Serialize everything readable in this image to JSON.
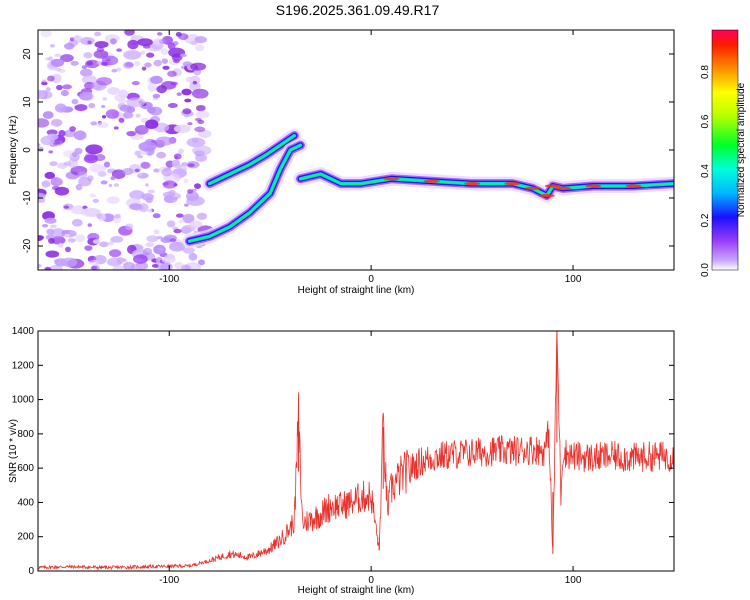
{
  "title": "S196.2025.361.09.49.R17",
  "colors": {
    "snr_line": "#e8322c",
    "axis": "#000000",
    "background": "#ffffff"
  },
  "chart_data": [
    {
      "type": "heatmap",
      "xlabel": "Height of straight line (km)",
      "ylabel": "Frequency (Hz)",
      "xlim": [
        -165,
        150
      ],
      "ylim": [
        -25,
        25
      ],
      "x_ticks": [
        -100,
        0,
        100
      ],
      "x_tick_labels": [
        "-100",
        "0",
        "100"
      ],
      "y_ticks": [
        -20,
        -10,
        0,
        10,
        20
      ],
      "y_tick_labels": [
        "-20",
        "-10",
        "0",
        "10",
        "20"
      ],
      "colorbar": {
        "label": "Normalized spectral amplitude",
        "range": [
          0,
          0.97
        ],
        "ticks": [
          0,
          0.2,
          0.4,
          0.6,
          0.8
        ],
        "tick_labels": [
          "0.0",
          "0.2",
          "0.4",
          "0.6",
          "0.8"
        ],
        "colormap": "rainbow"
      },
      "noise_region_x": [
        -165,
        -82
      ],
      "features": [
        {
          "name": "upper branch",
          "points": [
            [
              -80,
              -7
            ],
            [
              -70,
              -5
            ],
            [
              -60,
              -3
            ],
            [
              -52,
              -1
            ],
            [
              -45,
              1
            ],
            [
              -38,
              3
            ]
          ]
        },
        {
          "name": "lower branch",
          "points": [
            [
              -90,
              -19
            ],
            [
              -80,
              -18
            ],
            [
              -70,
              -16
            ],
            [
              -60,
              -13
            ],
            [
              -50,
              -9
            ],
            [
              -45,
              -4
            ],
            [
              -40,
              0
            ],
            [
              -35,
              1
            ]
          ]
        },
        {
          "name": "main ridge",
          "points": [
            [
              -35,
              -6
            ],
            [
              -25,
              -5
            ],
            [
              -15,
              -7
            ],
            [
              -5,
              -7
            ],
            [
              10,
              -6
            ],
            [
              30,
              -6.5
            ],
            [
              50,
              -7
            ],
            [
              70,
              -7
            ],
            [
              80,
              -8
            ],
            [
              87,
              -9.5
            ],
            [
              90,
              -7.5
            ],
            [
              95,
              -8
            ],
            [
              110,
              -7.5
            ],
            [
              130,
              -7.5
            ],
            [
              150,
              -7
            ]
          ]
        }
      ]
    },
    {
      "type": "line",
      "xlabel": "Height of straight line (km)",
      "ylabel": "SNR (10 * v/v)",
      "xlim": [
        -165,
        150
      ],
      "ylim": [
        0,
        1400
      ],
      "x_ticks": [
        -100,
        0,
        100
      ],
      "x_tick_labels": [
        "-100",
        "0",
        "100"
      ],
      "y_ticks": [
        0,
        200,
        400,
        600,
        800,
        1000,
        1200,
        1400
      ],
      "y_tick_labels": [
        "0",
        "200",
        "400",
        "600",
        "800",
        "1000",
        "1200",
        "1400"
      ],
      "series": [
        {
          "x": [
            -165,
            -150,
            -130,
            -110,
            -90,
            -80,
            -70,
            -60,
            -50,
            -45,
            -40,
            -38,
            -36,
            -34,
            -30,
            -25,
            -20,
            -15,
            -10,
            -5,
            0,
            4,
            6,
            8,
            10,
            15,
            20,
            25,
            30,
            40,
            50,
            60,
            70,
            80,
            86,
            88,
            90,
            92,
            94,
            95,
            96,
            98,
            100,
            110,
            120,
            130,
            140,
            150
          ],
          "y": [
            20,
            25,
            20,
            25,
            30,
            60,
            100,
            80,
            130,
            180,
            250,
            300,
            860,
            280,
            300,
            330,
            380,
            380,
            400,
            430,
            440,
            120,
            840,
            350,
            480,
            560,
            600,
            640,
            660,
            680,
            690,
            700,
            700,
            710,
            700,
            820,
            100,
            1400,
            450,
            700,
            690,
            680,
            670,
            660,
            670,
            660,
            670,
            670
          ]
        }
      ]
    }
  ]
}
